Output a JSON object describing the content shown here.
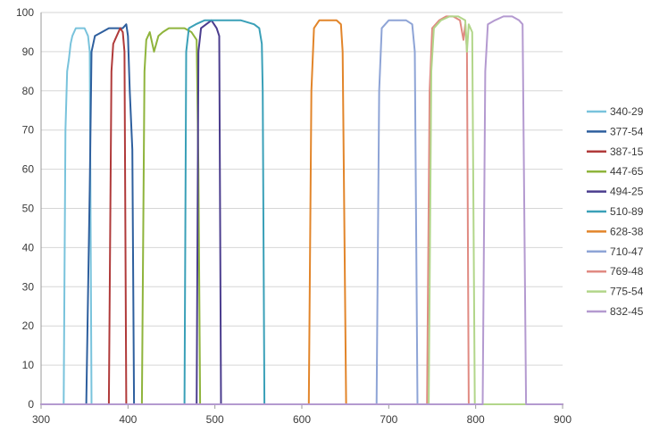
{
  "chart_data": {
    "type": "line",
    "title": "",
    "xlabel": "",
    "ylabel": "",
    "xlim": [
      300,
      900
    ],
    "ylim": [
      0,
      100
    ],
    "x_ticks": [
      300,
      400,
      500,
      600,
      700,
      800,
      900
    ],
    "y_ticks": [
      0,
      10,
      20,
      30,
      40,
      50,
      60,
      70,
      80,
      90,
      100
    ],
    "grid": "horizontal",
    "legend_position": "right",
    "series": [
      {
        "name": "340-29",
        "color": "#79c3dc",
        "x": [
          326,
          328,
          330,
          332,
          334,
          336,
          340,
          345,
          350,
          354,
          356,
          358,
          900
        ],
        "y": [
          0,
          70,
          85,
          88,
          92,
          94,
          96,
          96,
          96,
          94,
          90,
          0,
          0
        ]
      },
      {
        "name": "377-54",
        "color": "#2e5f9e",
        "x": [
          300,
          352,
          356,
          358,
          362,
          370,
          378,
          386,
          394,
          398,
          400,
          402,
          405,
          407,
          900
        ],
        "y": [
          0,
          0,
          55,
          90,
          94,
          95,
          96,
          96,
          96,
          97,
          94,
          80,
          65,
          0,
          0
        ]
      },
      {
        "name": "387-15",
        "color": "#b03a3a",
        "x": [
          300,
          378,
          381,
          383,
          387,
          391,
          394,
          396,
          398,
          900
        ],
        "y": [
          0,
          0,
          85,
          92,
          94,
          96,
          95,
          90,
          0,
          0
        ]
      },
      {
        "name": "447-65",
        "color": "#8fb43c",
        "x": [
          300,
          416,
          419,
          421,
          425,
          430,
          435,
          440,
          447,
          455,
          465,
          473,
          479,
          481,
          483,
          900
        ],
        "y": [
          0,
          0,
          85,
          93,
          95,
          90,
          94,
          95,
          96,
          96,
          96,
          95,
          93,
          60,
          0,
          0
        ]
      },
      {
        "name": "494-25",
        "color": "#4b3d8e",
        "x": [
          300,
          479,
          481,
          484,
          490,
          496,
          502,
          505,
          507,
          900
        ],
        "y": [
          0,
          0,
          90,
          96,
          97,
          98,
          96,
          94,
          0,
          0
        ]
      },
      {
        "name": "510-89",
        "color": "#3aa0b8",
        "x": [
          300,
          465,
          467,
          470,
          478,
          488,
          500,
          515,
          530,
          545,
          551,
          554,
          555,
          557,
          900
        ],
        "y": [
          0,
          0,
          90,
          96,
          97,
          98,
          98,
          98,
          98,
          97,
          96,
          92,
          80,
          0,
          0
        ]
      },
      {
        "name": "628-38",
        "color": "#e2852a",
        "x": [
          300,
          608,
          611,
          614,
          620,
          630,
          640,
          645,
          647,
          651,
          900
        ],
        "y": [
          0,
          0,
          80,
          96,
          98,
          98,
          98,
          97,
          90,
          0,
          0
        ]
      },
      {
        "name": "710-47",
        "color": "#8ea4d6",
        "x": [
          300,
          686,
          689,
          692,
          700,
          710,
          720,
          727,
          730,
          733,
          900
        ],
        "y": [
          0,
          0,
          80,
          96,
          98,
          98,
          98,
          97,
          90,
          0,
          0
        ]
      },
      {
        "name": "769-48",
        "color": "#e08a82",
        "x": [
          300,
          744,
          747,
          750,
          758,
          766,
          774,
          782,
          786,
          788,
          790,
          792,
          900
        ],
        "y": [
          0,
          0,
          80,
          96,
          98,
          99,
          99,
          98,
          93,
          97,
          90,
          0,
          0
        ]
      },
      {
        "name": "775-54",
        "color": "#b2d68a",
        "x": [
          300,
          746,
          749,
          752,
          760,
          770,
          780,
          788,
          790,
          792,
          796,
          799,
          900
        ],
        "y": [
          0,
          0,
          85,
          96,
          98,
          99,
          99,
          98,
          90,
          97,
          95,
          0,
          0
        ]
      },
      {
        "name": "832-45",
        "color": "#b49ad0",
        "x": [
          300,
          808,
          811,
          814,
          822,
          832,
          842,
          850,
          854,
          858,
          900
        ],
        "y": [
          0,
          0,
          85,
          97,
          98,
          99,
          99,
          98,
          97,
          0,
          0
        ]
      }
    ]
  }
}
